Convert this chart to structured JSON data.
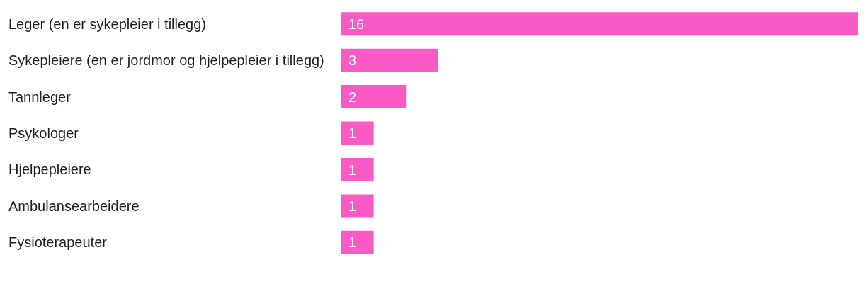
{
  "chart_data": {
    "type": "bar",
    "orientation": "horizontal",
    "categories": [
      "Leger (en er sykepleier i tillegg)",
      "Sykepleiere (en er jordmor og hjelpepleier i tillegg)",
      "Tannleger",
      "Psykologer",
      "Hjelpepleiere",
      "Ambulansearbeidere",
      "Fysioterapeuter"
    ],
    "values": [
      16,
      3,
      2,
      1,
      1,
      1,
      1
    ],
    "color": "#f95ac5",
    "data_labels": true
  }
}
